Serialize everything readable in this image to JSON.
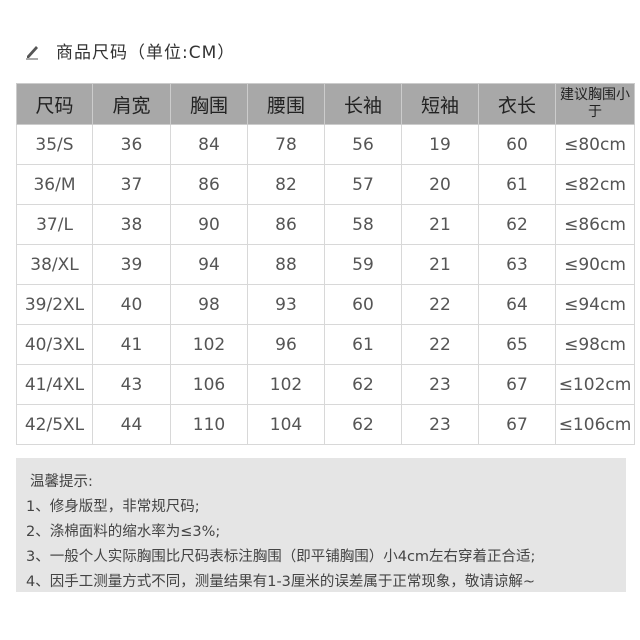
{
  "title": "商品尺码（单位:CM）",
  "headers": [
    "尺码",
    "肩宽",
    "胸围",
    "腰围",
    "长袖",
    "短袖",
    "衣长",
    "建议胸围小于"
  ],
  "rows": [
    [
      "35/S",
      "36",
      "84",
      "78",
      "56",
      "19",
      "60",
      "≤80cm"
    ],
    [
      "36/M",
      "37",
      "86",
      "82",
      "57",
      "20",
      "61",
      "≤82cm"
    ],
    [
      "37/L",
      "38",
      "90",
      "86",
      "58",
      "21",
      "62",
      "≤86cm"
    ],
    [
      "38/XL",
      "39",
      "94",
      "88",
      "59",
      "21",
      "63",
      "≤90cm"
    ],
    [
      "39/2XL",
      "40",
      "98",
      "93",
      "60",
      "22",
      "64",
      "≤94cm"
    ],
    [
      "40/3XL",
      "41",
      "102",
      "96",
      "61",
      "22",
      "65",
      "≤98cm"
    ],
    [
      "41/4XL",
      "43",
      "106",
      "102",
      "62",
      "23",
      "67",
      "≤102cm"
    ],
    [
      "42/5XL",
      "44",
      "110",
      "104",
      "62",
      "23",
      "67",
      "≤106cm"
    ]
  ],
  "notes": {
    "heading": "温馨提示:",
    "items": [
      "1、修身版型，非常规尺码;",
      "2、涤棉面料的缩水率为≤3%;",
      "3、一般个人实际胸围比尺码表标注胸围（即平铺胸围）小4cm左右穿着正合适;",
      "4、因手工测量方式不同，测量结果有1-3厘米的误差属于正常现象，敬请谅解~"
    ]
  }
}
